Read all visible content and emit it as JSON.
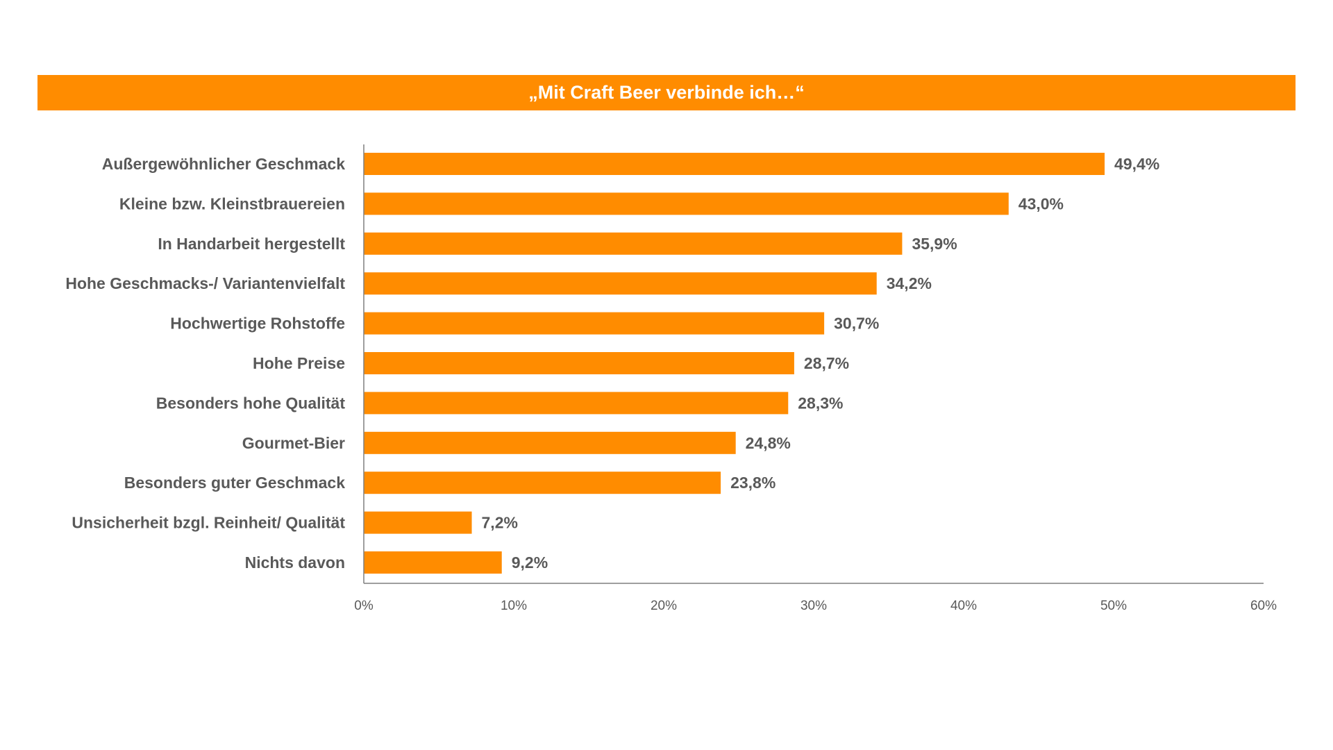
{
  "chart_data": {
    "type": "bar",
    "orientation": "horizontal",
    "title": "„Mit Craft Beer verbinde ich…“",
    "categories": [
      "Außergewöhnlicher Geschmack",
      "Kleine bzw. Kleinstbrauereien",
      "In Handarbeit hergestellt",
      "Hohe Geschmacks-/ Variantenvielfalt",
      "Hochwertige Rohstoffe",
      "Hohe Preise",
      "Besonders hohe Qualität",
      "Gourmet-Bier",
      "Besonders guter Geschmack",
      "Unsicherheit bzgl. Reinheit/ Qualität",
      "Nichts davon"
    ],
    "values": [
      49.4,
      43.0,
      35.9,
      34.2,
      30.7,
      28.7,
      28.3,
      24.8,
      23.8,
      7.2,
      9.2
    ],
    "data_labels": [
      "49,4%",
      "43,0%",
      "35,9%",
      "34,2%",
      "30,7%",
      "28,7%",
      "28,3%",
      "24,8%",
      "23,8%",
      "7,2%",
      "9,2%"
    ],
    "xlim": [
      0,
      60
    ],
    "xticks": [
      "0%",
      "10%",
      "20%",
      "30%",
      "40%",
      "50%",
      "60%"
    ],
    "xlabel": "",
    "ylabel": "",
    "grid": false,
    "colors": {
      "bar": "#ff8c00",
      "text": "#595959",
      "axis": "#7f7f7f"
    }
  }
}
